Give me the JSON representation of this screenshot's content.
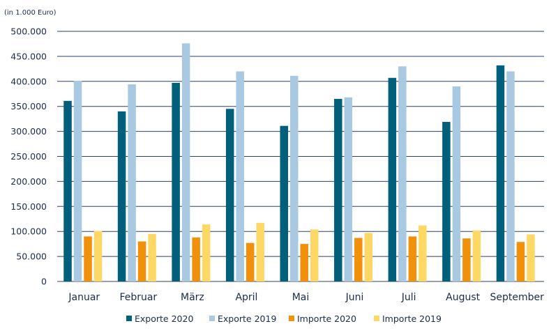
{
  "chart_data": {
    "type": "bar",
    "unit_label": "(in 1.000 Euro)",
    "categories": [
      "Januar",
      "Februar",
      "März",
      "April",
      "Mai",
      "Juni",
      "Juli",
      "August",
      "September"
    ],
    "series": [
      {
        "name": "Exporte 2020",
        "color": "#005f7a",
        "values": [
          361000,
          340000,
          397000,
          345000,
          311000,
          365000,
          407000,
          319000,
          432000
        ]
      },
      {
        "name": "Exporte 2019",
        "color": "#a9c9e2",
        "values": [
          401000,
          394000,
          476000,
          420000,
          411000,
          368000,
          430000,
          390000,
          420000
        ]
      },
      {
        "name": "Importe 2020",
        "color": "#f0900b",
        "values": [
          90000,
          80000,
          88000,
          77000,
          75000,
          87000,
          90000,
          86000,
          79000
        ]
      },
      {
        "name": "Importe 2019",
        "color": "#fdd865",
        "values": [
          101000,
          95000,
          114000,
          117000,
          104000,
          97000,
          112000,
          102000,
          94000
        ]
      }
    ],
    "ylim": [
      0,
      500000
    ],
    "yticks": [
      "0",
      "50.000",
      "100.000",
      "150.000",
      "200.000",
      "250.000",
      "300.000",
      "350.000",
      "400.000",
      "450.000",
      "500.000"
    ],
    "grid": true,
    "legend_position": "bottom"
  }
}
